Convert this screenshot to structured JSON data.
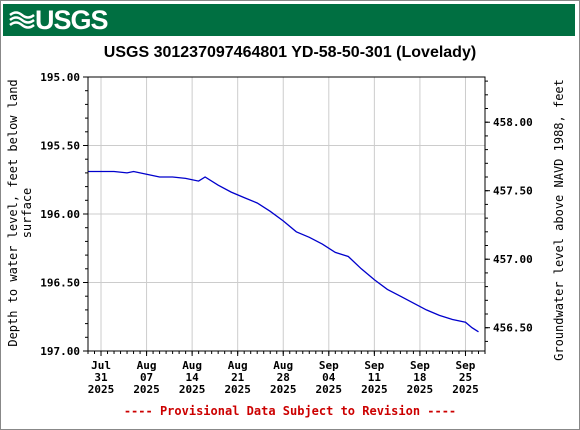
{
  "header": {
    "logo_text": "USGS",
    "brand_color": "#006f41"
  },
  "chart_data": {
    "type": "line",
    "title": "USGS 301237097464801 YD-58-50-301 (Lovelady)",
    "ylabel_left": "Depth to water level, feet below land\nsurface",
    "ylabel_right": "Groundwater level above NAVD 1988, feet",
    "y_left_range": [
      195.0,
      197.0
    ],
    "y_left_inverted": true,
    "y_left_ticks": [
      "195.00",
      "195.50",
      "196.00",
      "196.50",
      "197.00"
    ],
    "y_right_range": [
      458.33,
      456.33
    ],
    "y_right_ticks": [
      "458.00",
      "457.50",
      "457.00",
      "456.50"
    ],
    "x_range": [
      "2025-07-29",
      "2025-09-28"
    ],
    "x_ticks": [
      {
        "date": "2025-07-31",
        "month": "Jul",
        "day": "31",
        "year": "2025"
      },
      {
        "date": "2025-08-07",
        "month": "Aug",
        "day": "07",
        "year": "2025"
      },
      {
        "date": "2025-08-14",
        "month": "Aug",
        "day": "14",
        "year": "2025"
      },
      {
        "date": "2025-08-21",
        "month": "Aug",
        "day": "21",
        "year": "2025"
      },
      {
        "date": "2025-08-28",
        "month": "Aug",
        "day": "28",
        "year": "2025"
      },
      {
        "date": "2025-09-04",
        "month": "Sep",
        "day": "04",
        "year": "2025"
      },
      {
        "date": "2025-09-11",
        "month": "Sep",
        "day": "11",
        "year": "2025"
      },
      {
        "date": "2025-09-18",
        "month": "Sep",
        "day": "18",
        "year": "2025"
      },
      {
        "date": "2025-09-25",
        "month": "Sep",
        "day": "25",
        "year": "2025"
      }
    ],
    "grid": true,
    "series_color": "#0000cc",
    "series": [
      {
        "points": [
          [
            "2025-07-29",
            195.69
          ],
          [
            "2025-07-31",
            195.69
          ],
          [
            "2025-08-02",
            195.69
          ],
          [
            "2025-08-04",
            195.7
          ],
          [
            "2025-08-05",
            195.69
          ],
          [
            "2025-08-07",
            195.71
          ],
          [
            "2025-08-09",
            195.73
          ],
          [
            "2025-08-11",
            195.73
          ],
          [
            "2025-08-13",
            195.74
          ],
          [
            "2025-08-15",
            195.76
          ],
          [
            "2025-08-16",
            195.73
          ],
          [
            "2025-08-18",
            195.79
          ],
          [
            "2025-08-20",
            195.84
          ],
          [
            "2025-08-22",
            195.88
          ],
          [
            "2025-08-24",
            195.92
          ],
          [
            "2025-08-26",
            195.98
          ],
          [
            "2025-08-28",
            196.05
          ],
          [
            "2025-08-30",
            196.13
          ],
          [
            "2025-09-01",
            196.17
          ],
          [
            "2025-09-03",
            196.22
          ],
          [
            "2025-09-05",
            196.28
          ],
          [
            "2025-09-07",
            196.31
          ],
          [
            "2025-09-09",
            196.4
          ],
          [
            "2025-09-11",
            196.48
          ],
          [
            "2025-09-13",
            196.55
          ],
          [
            "2025-09-15",
            196.6
          ],
          [
            "2025-09-17",
            196.65
          ],
          [
            "2025-09-19",
            196.7
          ],
          [
            "2025-09-21",
            196.74
          ],
          [
            "2025-09-23",
            196.77
          ],
          [
            "2025-09-25",
            196.79
          ],
          [
            "2025-09-26",
            196.83
          ],
          [
            "2025-09-27",
            196.86
          ]
        ]
      }
    ]
  },
  "footer_text": "---- Provisional Data Subject to Revision ----"
}
